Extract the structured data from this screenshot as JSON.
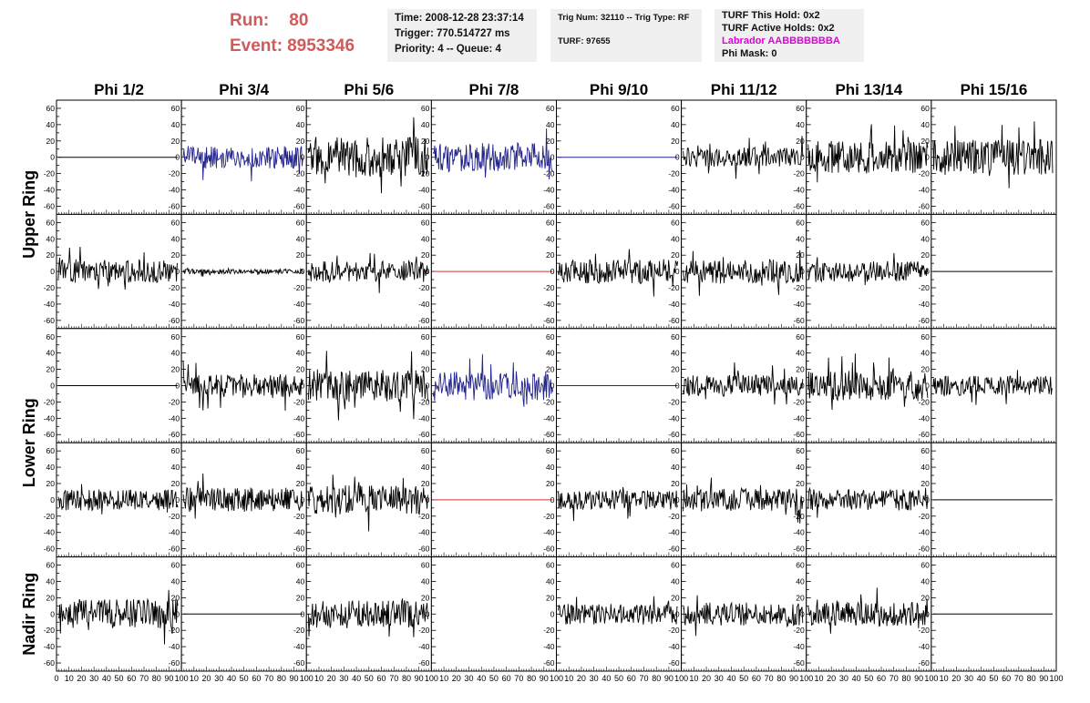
{
  "header": {
    "run_label": "Run:",
    "run_value": "80",
    "event_label": "Event:",
    "event_value": "8953346",
    "time": "Time: 2008-12-28 23:37:14",
    "trigger": "Trigger: 770.514727 ms",
    "priority": "Priority: 4 -- Queue: 4",
    "trig_num": "Trig Num: 32110 -- Trig Type: RF",
    "turf": "TURF: 97655",
    "turf_this_hold": "TURF This Hold: 0x2",
    "turf_active_holds": "TURF Active Holds: 0x2",
    "labrador": "Labrador AABBBBBBBA",
    "phi_mask": "Phi Mask: 0",
    "labrador_color": "#e000e0",
    "run_color": "#d15a5a"
  },
  "columns": [
    "Phi 1/2",
    "Phi 3/4",
    "Phi 5/6",
    "Phi 7/8",
    "Phi 9/10",
    "Phi 11/12",
    "Phi 13/14",
    "Phi 15/16"
  ],
  "ring_labels": [
    "Upper Ring",
    "Lower Ring",
    "Nadir Ring"
  ],
  "chart_data": {
    "type": "line",
    "grid": "8 columns x 5 rows of waveform panels",
    "ylim": [
      -70,
      70
    ],
    "yticks": [
      "60",
      "40",
      "20",
      "0",
      "-20",
      "-40",
      "-60"
    ],
    "xlim": [
      0,
      100
    ],
    "xticks": [
      "0",
      "10",
      "20",
      "30",
      "40",
      "50",
      "60",
      "70",
      "80",
      "90",
      "100"
    ],
    "trace_colors": {
      "black": "#000000",
      "blue": "#23238e",
      "red": "#cc3333"
    },
    "cells": [
      [
        {
          "style": "flat",
          "color": "black"
        },
        {
          "style": "noise",
          "amp": 14,
          "color": "blue",
          "seed": 2
        },
        {
          "style": "noise",
          "amp": 25,
          "color": "black",
          "seed": 3
        },
        {
          "style": "noise",
          "amp": 18,
          "color": "blue",
          "seed": 4
        },
        {
          "style": "flat",
          "color": "blue"
        },
        {
          "style": "noise",
          "amp": 12,
          "color": "black",
          "seed": 6
        },
        {
          "style": "noise",
          "amp": 20,
          "color": "black",
          "seed": 7
        },
        {
          "style": "noise",
          "amp": 22,
          "color": "black",
          "seed": 8
        }
      ],
      [
        {
          "style": "noise",
          "amp": 14,
          "color": "black",
          "seed": 11
        },
        {
          "style": "noise",
          "amp": 3,
          "color": "black",
          "seed": 12
        },
        {
          "style": "noise",
          "amp": 13,
          "color": "black",
          "seed": 13
        },
        {
          "style": "flat",
          "color": "red"
        },
        {
          "style": "noise",
          "amp": 15,
          "color": "black",
          "seed": 15
        },
        {
          "style": "noise",
          "amp": 15,
          "color": "black",
          "seed": 16
        },
        {
          "style": "noise",
          "amp": 13,
          "color": "black",
          "seed": 17
        },
        {
          "style": "flat",
          "color": "black"
        }
      ],
      [
        {
          "style": "flat",
          "color": "black"
        },
        {
          "style": "noise",
          "amp": 14,
          "color": "black",
          "seed": 22
        },
        {
          "style": "noise",
          "amp": 20,
          "color": "black",
          "seed": 23
        },
        {
          "style": "noise",
          "amp": 18,
          "color": "blue",
          "seed": 24
        },
        {
          "style": "flat",
          "color": "blue"
        },
        {
          "style": "noise",
          "amp": 13,
          "color": "black",
          "seed": 26
        },
        {
          "style": "noise",
          "amp": 18,
          "color": "black",
          "seed": 27
        },
        {
          "style": "noise",
          "amp": 12,
          "color": "black",
          "seed": 28
        }
      ],
      [
        {
          "style": "noise",
          "amp": 13,
          "color": "black",
          "seed": 31
        },
        {
          "style": "noise",
          "amp": 15,
          "color": "black",
          "seed": 32
        },
        {
          "style": "noise",
          "amp": 18,
          "color": "black",
          "seed": 33
        },
        {
          "style": "flat",
          "color": "red"
        },
        {
          "style": "noise",
          "amp": 12,
          "color": "black",
          "seed": 35
        },
        {
          "style": "noise",
          "amp": 14,
          "color": "black",
          "seed": 36
        },
        {
          "style": "noise",
          "amp": 13,
          "color": "black",
          "seed": 37
        },
        {
          "style": "flat",
          "color": "black"
        }
      ],
      [
        {
          "style": "noise",
          "amp": 18,
          "color": "black",
          "seed": 41
        },
        {
          "style": "flat",
          "color": "black"
        },
        {
          "style": "noise",
          "amp": 17,
          "color": "black",
          "seed": 43
        },
        {
          "style": "blank"
        },
        {
          "style": "noise",
          "amp": 13,
          "color": "black",
          "seed": 45
        },
        {
          "style": "noise",
          "amp": 14,
          "color": "black",
          "seed": 46
        },
        {
          "style": "noise",
          "amp": 15,
          "color": "black",
          "seed": 47
        },
        {
          "style": "flat",
          "color": "black"
        }
      ]
    ]
  }
}
